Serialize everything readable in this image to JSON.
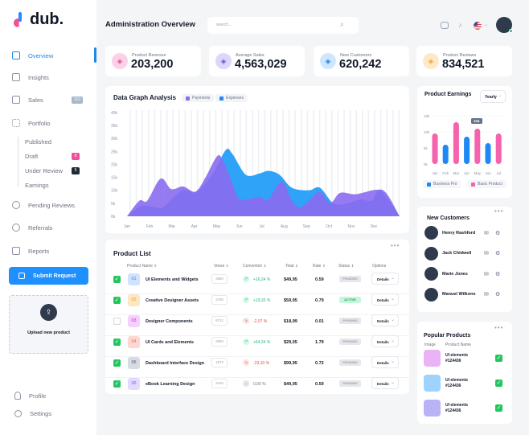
{
  "brand": {
    "name": "dub.",
    "accent": "#1e88e5"
  },
  "sidebar": {
    "items": [
      {
        "label": "Overview",
        "icon": "layout-icon",
        "active": true
      },
      {
        "label": "Insights",
        "icon": "chart-icon"
      },
      {
        "label": "Sales",
        "icon": "wallet-icon",
        "badge": "110"
      },
      {
        "label": "Portfolio",
        "icon": "grid-icon"
      }
    ],
    "portfolio_sub": [
      {
        "label": "Published"
      },
      {
        "label": "Draft",
        "badge": "8",
        "badge_color": "#ef4f9b"
      },
      {
        "label": "Under Review",
        "badge": "5",
        "badge_color": "#1f2937"
      },
      {
        "label": "Earnings"
      }
    ],
    "items2": [
      {
        "label": "Pending Reviews",
        "icon": "clock-icon"
      },
      {
        "label": "Referrals",
        "icon": "users-icon"
      },
      {
        "label": "Reports",
        "icon": "file-icon"
      }
    ],
    "submit_label": "Submit Request",
    "upload_label": "Upload new product",
    "profile_label": "Profile",
    "settings_label": "Settings"
  },
  "header": {
    "title": "Administration Overview",
    "search_placeholder": "search..."
  },
  "stats": [
    {
      "label": "Product Revenue",
      "value": "203,200",
      "icon": "copy-icon",
      "color": "#fbd1e6",
      "fg": "#e0559b"
    },
    {
      "label": "Average Sales",
      "value": "4,563,029",
      "icon": "sliders-icon",
      "color": "#ddd6fe",
      "fg": "#6d5bd0"
    },
    {
      "label": "New Customers",
      "value": "620,242",
      "icon": "inbox-icon",
      "color": "#cfe6ff",
      "fg": "#1e88e5"
    },
    {
      "label": "Product Reviews",
      "value": "834,521",
      "icon": "coin-icon",
      "color": "#fde9c8",
      "fg": "#f2a93b"
    }
  ],
  "graph": {
    "title": "Data Graph Analysis",
    "chart_data": {
      "type": "area",
      "x_labels": [
        "Jan",
        "Feb",
        "Mar",
        "Apr",
        "May",
        "Jun",
        "Jul",
        "Aug",
        "Sep",
        "Oct",
        "Nov",
        "Dec"
      ],
      "y_ticks": [
        "0k",
        "5k",
        "10k",
        "15k",
        "20k",
        "25k",
        "30k",
        "35k",
        "40k"
      ],
      "ylim": [
        0,
        40000
      ],
      "series": [
        {
          "name": "Expenses",
          "color": "#2ea3f7",
          "points": [
            [
              0,
              0
            ],
            [
              0.65,
              4000
            ],
            [
              1.25,
              3500
            ],
            [
              1.6,
              3500
            ],
            [
              2.35,
              9500
            ],
            [
              2.7,
              10000
            ],
            [
              3.1,
              9500
            ],
            [
              3.8,
              16000
            ],
            [
              4.4,
              25500
            ],
            [
              4.7,
              24000
            ],
            [
              5.3,
              16000
            ],
            [
              5.9,
              16500
            ],
            [
              6.3,
              17500
            ],
            [
              6.8,
              16000
            ],
            [
              7.35,
              11000
            ],
            [
              8.1,
              10000
            ],
            [
              8.6,
              11000
            ],
            [
              9.2,
              5000
            ],
            [
              9.8,
              5000
            ],
            [
              10.4,
              6500
            ],
            [
              10.9,
              6000
            ],
            [
              11.3,
              10000
            ],
            [
              12.15,
              0
            ]
          ]
        },
        {
          "name": "Payments",
          "color": "#8b6cf0",
          "points": [
            [
              0,
              0
            ],
            [
              0.55,
              6000
            ],
            [
              0.9,
              6000
            ],
            [
              1.5,
              14500
            ],
            [
              1.97,
              10500
            ],
            [
              2.5,
              11500
            ],
            [
              3.05,
              9500
            ],
            [
              3.5,
              15000
            ],
            [
              4.0,
              23000
            ],
            [
              4.25,
              22000
            ],
            [
              4.6,
              15000
            ],
            [
              4.96,
              7000
            ],
            [
              5.3,
              6500
            ],
            [
              5.9,
              7500
            ],
            [
              6.3,
              6500
            ],
            [
              6.9,
              13500
            ],
            [
              7.35,
              6000
            ],
            [
              7.7,
              3500
            ],
            [
              8.1,
              6000
            ],
            [
              8.6,
              9500
            ],
            [
              9.05,
              5000
            ],
            [
              9.5,
              9000
            ],
            [
              10.2,
              8500
            ],
            [
              11.1,
              10200
            ],
            [
              11.55,
              9000
            ],
            [
              12.15,
              0
            ]
          ]
        }
      ]
    }
  },
  "earnings": {
    "title": "Product Earnings",
    "period": "Yearly",
    "tooltip": "241",
    "chart_data": {
      "type": "bar",
      "categories": [
        "Jan",
        "Feb",
        "Mar",
        "Apr",
        "May",
        "Jun",
        "Jul"
      ],
      "values": [
        9500,
        6000,
        13000,
        8500,
        11000,
        6500,
        9500
      ],
      "series_of": [
        "Basic Product",
        "Business Pro",
        "Basic Product",
        "Business Pro",
        "Basic Product",
        "Business Pro",
        "Basic Product"
      ],
      "y_ticks": [
        "0k",
        "5k",
        "10k",
        "15k"
      ],
      "ylim": [
        0,
        15000
      ],
      "legend": [
        {
          "name": "Business Pro",
          "color": "#1e88f5"
        },
        {
          "name": "Basic Product",
          "color": "#f562ad"
        }
      ]
    }
  },
  "products": {
    "title": "Product List",
    "columns": [
      "Product Name",
      "Views",
      "Convertion",
      "Total",
      "Rate",
      "Status",
      "Options"
    ],
    "rows": [
      {
        "checked": true,
        "num": "01",
        "num_bg": "#cfe2ff",
        "num_fg": "#3b82f6",
        "name": "UI Elements and Widgets",
        "views": "3890",
        "conv": "+16,24 %",
        "trend": "up",
        "total": "$49,95",
        "rate": "0.59",
        "status": "PENDING",
        "option": "Details"
      },
      {
        "checked": true,
        "num": "02",
        "num_bg": "#fde6c4",
        "num_fg": "#f59e0b",
        "name": "Creative Designer Assets",
        "views": "4785",
        "conv": "+19,33 %",
        "trend": "up",
        "total": "$59,95",
        "rate": "0.79",
        "status": "ACTIVE",
        "option": "Details"
      },
      {
        "checked": false,
        "num": "03",
        "num_bg": "#f5d0fe",
        "num_fg": "#c026d3",
        "name": "Designer Components",
        "views": "9712",
        "conv": "-2,07 %",
        "trend": "down",
        "total": "$18,99",
        "rate": "0.01",
        "status": "PENDING",
        "option": "Details"
      },
      {
        "checked": true,
        "num": "04",
        "num_bg": "#fed7d2",
        "num_fg": "#ef6a4f",
        "name": "UI Cards and Elements",
        "views": "3993",
        "conv": "+64,24 %",
        "trend": "up",
        "total": "$29,05",
        "rate": "1.79",
        "status": "PENDING",
        "option": "Details"
      },
      {
        "checked": true,
        "num": "05",
        "num_bg": "#d7dce4",
        "num_fg": "#475569",
        "name": "Dashboard Interface Design",
        "views": "1872",
        "conv": "-23,10 %",
        "trend": "down",
        "total": "$99,95",
        "rate": "0.72",
        "status": "PENDING",
        "option": "Details"
      },
      {
        "checked": true,
        "num": "06",
        "num_bg": "#e3dbfd",
        "num_fg": "#7c5ce8",
        "name": "eBook Learning Design",
        "views": "3449",
        "conv": "0,00 %",
        "trend": "flat",
        "total": "$49,95",
        "rate": "0.59",
        "status": "PENDING",
        "option": "Details"
      }
    ]
  },
  "customers": {
    "title": "New Customers",
    "list": [
      "Henry Rashford",
      "Jack Chidwell",
      "Marie Jones",
      "Manuel Wilkons"
    ]
  },
  "popular": {
    "title": "Popular Products",
    "col_image": "Image",
    "col_name": "Product Name",
    "list": [
      {
        "name": "UI elements",
        "id": "#124436",
        "color": "#e9b3f5"
      },
      {
        "name": "UI elements",
        "id": "#124436",
        "color": "#9fd3ff"
      },
      {
        "name": "UI elements",
        "id": "#124436",
        "color": "#b9b3f5"
      }
    ]
  }
}
